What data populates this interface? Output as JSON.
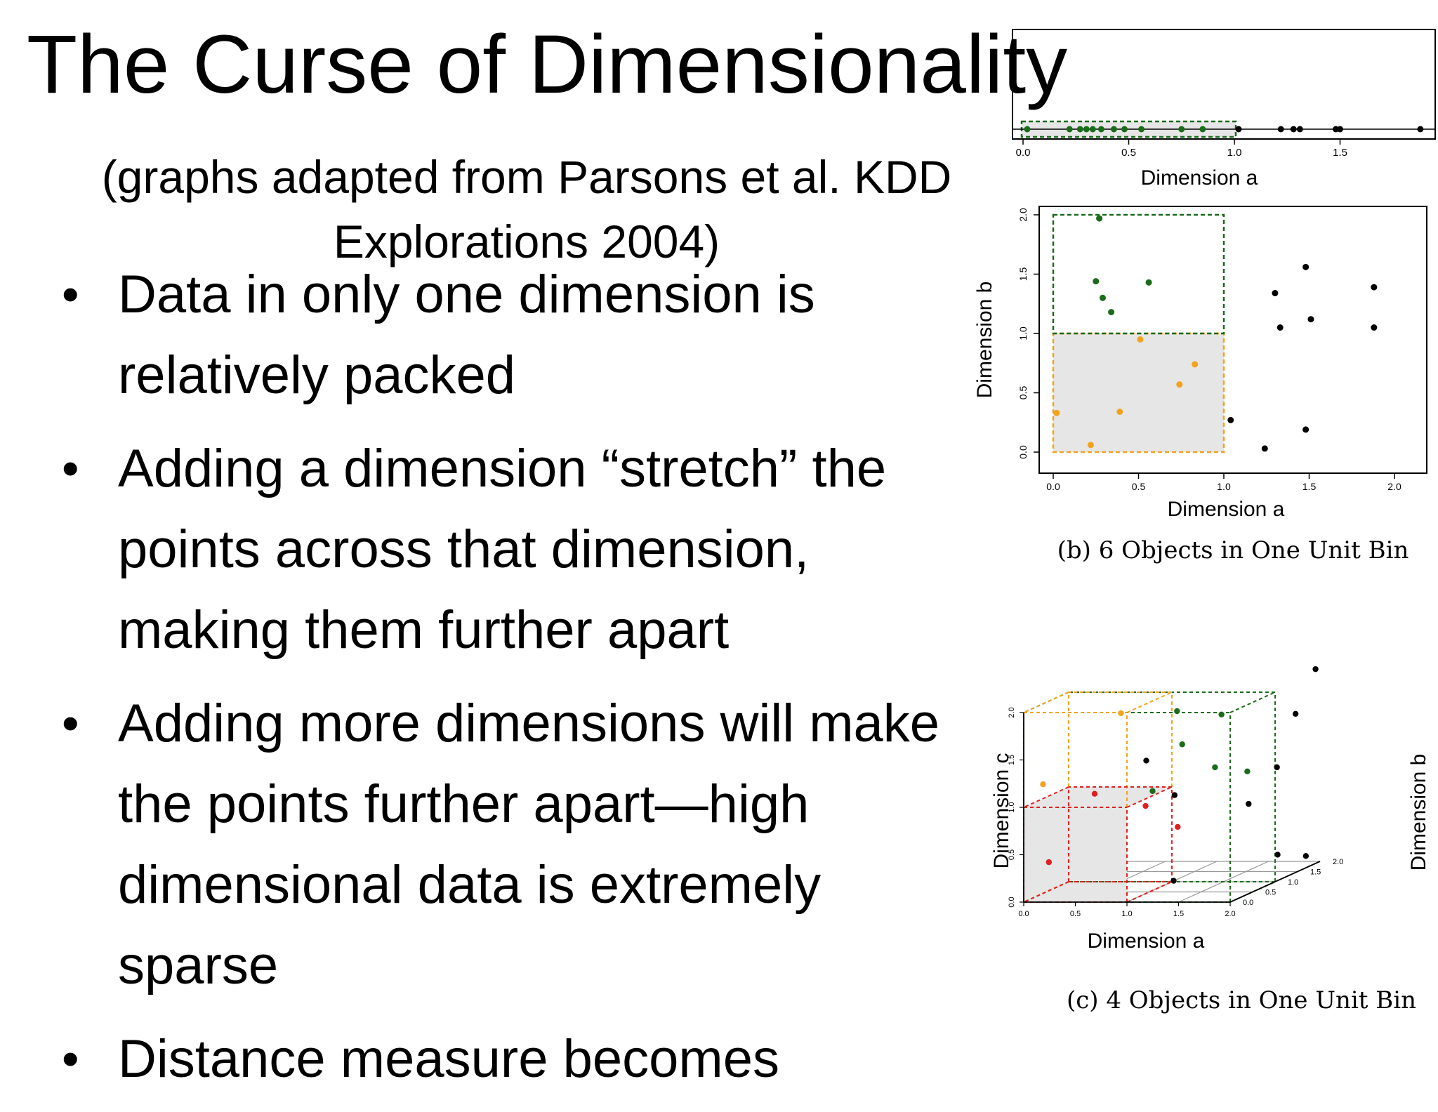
{
  "slide": {
    "title": "The Curse of Dimensionality",
    "subtitle": "(graphs adapted from Parsons et al. KDD Explorations 2004)",
    "bullets": [
      "Data in only one dimension is relatively packed",
      "Adding a dimension “stretch” the points across that dimension, making them further apart",
      "Adding more dimensions will make the points further apart—high dimensional data is extremely sparse",
      "Distance measure becomes"
    ]
  },
  "colors": {
    "green": "#1a6b1a",
    "orange": "#f2a21d",
    "red": "#e02020",
    "black": "#000000",
    "bin_fill": "#e6e6e6"
  },
  "chart_data": [
    {
      "type": "scatter",
      "xlabel": "Dimension a",
      "xlim": [
        0,
        1.9
      ],
      "xticks": [
        "0.0",
        "0.5",
        "1.0",
        "1.5"
      ],
      "bin": [
        0,
        1
      ],
      "points_in_bin": [
        0.02,
        0.22,
        0.27,
        0.3,
        0.33,
        0.37,
        0.43,
        0.48,
        0.56,
        0.75,
        0.85
      ],
      "points_outside": [
        1.02,
        1.22,
        1.28,
        1.31,
        1.48,
        1.5,
        1.88
      ]
    },
    {
      "type": "scatter",
      "xlabel": "Dimension a",
      "ylabel": "Dimension b",
      "xlim": [
        0,
        2
      ],
      "ylim": [
        0,
        2
      ],
      "xticks": [
        "0.0",
        "0.5",
        "1.0",
        "1.5",
        "2.0"
      ],
      "yticks": [
        "0.0",
        "0.5",
        "1.0",
        "1.5",
        "2.0"
      ],
      "caption": "(b) 6 Objects in One Unit Bin",
      "green_points": [
        [
          0.27,
          1.97
        ],
        [
          0.25,
          1.44
        ],
        [
          0.29,
          1.3
        ],
        [
          0.34,
          1.18
        ],
        [
          0.56,
          1.43
        ]
      ],
      "orange_points": [
        [
          0.02,
          0.33
        ],
        [
          0.22,
          0.06
        ],
        [
          0.39,
          0.34
        ],
        [
          0.51,
          0.95
        ],
        [
          0.74,
          0.57
        ],
        [
          0.83,
          0.74
        ]
      ],
      "black_points": [
        [
          1.04,
          0.27
        ],
        [
          1.24,
          0.03
        ],
        [
          1.3,
          1.34
        ],
        [
          1.33,
          1.05
        ],
        [
          1.48,
          0.19
        ],
        [
          1.48,
          1.56
        ],
        [
          1.51,
          1.12
        ],
        [
          1.88,
          1.39
        ],
        [
          1.88,
          1.05
        ]
      ]
    },
    {
      "type": "scatter",
      "xlabel": "Dimension a",
      "ylabel": "Dimension c",
      "zlabel": "Dimension b",
      "xticks": [
        "0.0",
        "0.5",
        "1.0",
        "1.5",
        "2.0"
      ],
      "yticks": [
        "0.0",
        "0.5",
        "1.0",
        "1.5",
        "2.0"
      ],
      "zticks": [
        "0.0",
        "0.5",
        "1.0",
        "1.5",
        "2.0"
      ],
      "caption": "(c) 4 Objects in One Unit Bin",
      "red_points": [
        [
          0.2,
          0.4,
          0.1
        ],
        [
          0.6,
          1.1,
          0.2
        ],
        [
          1.05,
          0.95,
          0.3
        ],
        [
          1.1,
          0.6,
          0.9
        ]
      ],
      "orange_points": [
        [
          0.1,
          1.2,
          0.2
        ],
        [
          0.55,
          1.8,
          0.9
        ]
      ],
      "green_points": [
        [
          0.9,
          1.0,
          0.8
        ],
        [
          1.1,
          1.45,
          1.0
        ],
        [
          1.2,
          1.1,
          1.5
        ],
        [
          1.35,
          1.7,
          1.3
        ],
        [
          1.6,
          1.1,
          1.3
        ],
        [
          1.05,
          1.8,
          1.0
        ]
      ],
      "black_points": [
        [
          1.1,
          1.45,
          0.2
        ],
        [
          1.2,
          1.0,
          0.6
        ],
        [
          1.3,
          0.15,
          0.35
        ],
        [
          1.7,
          0.8,
          1.1
        ],
        [
          1.8,
          1.1,
          1.5
        ],
        [
          1.85,
          1.6,
          1.8
        ],
        [
          2.0,
          2.05,
          1.9
        ],
        [
          1.85,
          0.2,
          1.4
        ],
        [
          1.95,
          0.1,
          1.8
        ]
      ]
    }
  ]
}
